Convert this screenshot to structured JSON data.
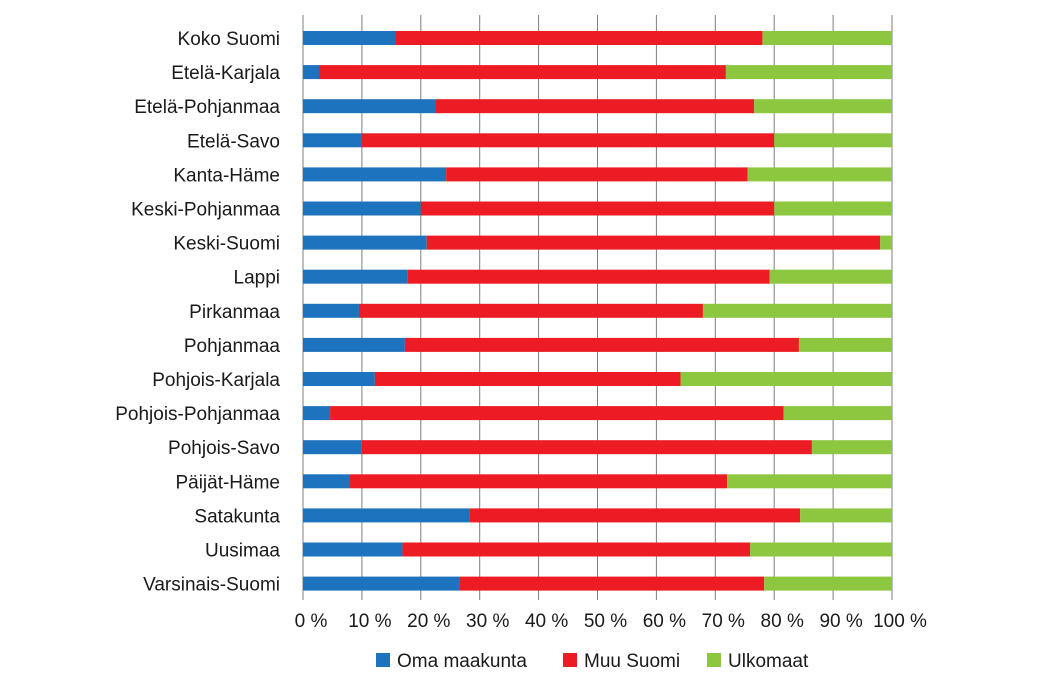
{
  "chart_data": {
    "type": "bar",
    "orientation": "horizontal",
    "stacked": true,
    "percent_stacked": true,
    "categories": [
      "Koko Suomi",
      "Etelä-Karjala",
      "Etelä-Pohjanmaa",
      "Etelä-Savo",
      "Kanta-Häme",
      "Keski-Pohjanmaa",
      "Keski-Suomi",
      "Lappi",
      "Pirkanmaa",
      "Pohjanmaa",
      "Pohjois-Karjala",
      "Pohjois-Pohjanmaa",
      "Pohjois-Savo",
      "Päijät-Häme",
      "Satakunta",
      "Uusimaa",
      "Varsinais-Suomi"
    ],
    "series": [
      {
        "name": "Oma maakunta",
        "color": "#1e73be",
        "values": [
          15.7,
          2.8,
          22.5,
          10.0,
          24.3,
          20.0,
          21.0,
          17.7,
          9.5,
          17.3,
          12.2,
          4.6,
          9.9,
          7.9,
          28.2,
          16.9,
          26.5
        ]
      },
      {
        "name": "Muu Suomi",
        "color": "#ed1c24",
        "values": [
          62.3,
          69.0,
          54.1,
          70.0,
          51.2,
          60.0,
          77.0,
          61.5,
          58.4,
          66.9,
          51.9,
          77.0,
          76.5,
          64.1,
          56.2,
          59.0,
          51.8
        ]
      },
      {
        "name": "Ulkomaat",
        "color": "#8dc63f",
        "values": [
          22.0,
          28.2,
          23.4,
          20.0,
          24.5,
          20.0,
          2.0,
          20.8,
          32.1,
          15.8,
          35.9,
          18.4,
          13.6,
          28.0,
          15.6,
          24.1,
          21.7
        ]
      }
    ],
    "x_ticks": [
      "0 %",
      "10 %",
      "20 %",
      "30 %",
      "40 %",
      "50 %",
      "60 %",
      "70 %",
      "80 %",
      "90 %",
      "100 %"
    ],
    "xlim": [
      0,
      100
    ],
    "grid": true,
    "legend_position": "bottom"
  }
}
